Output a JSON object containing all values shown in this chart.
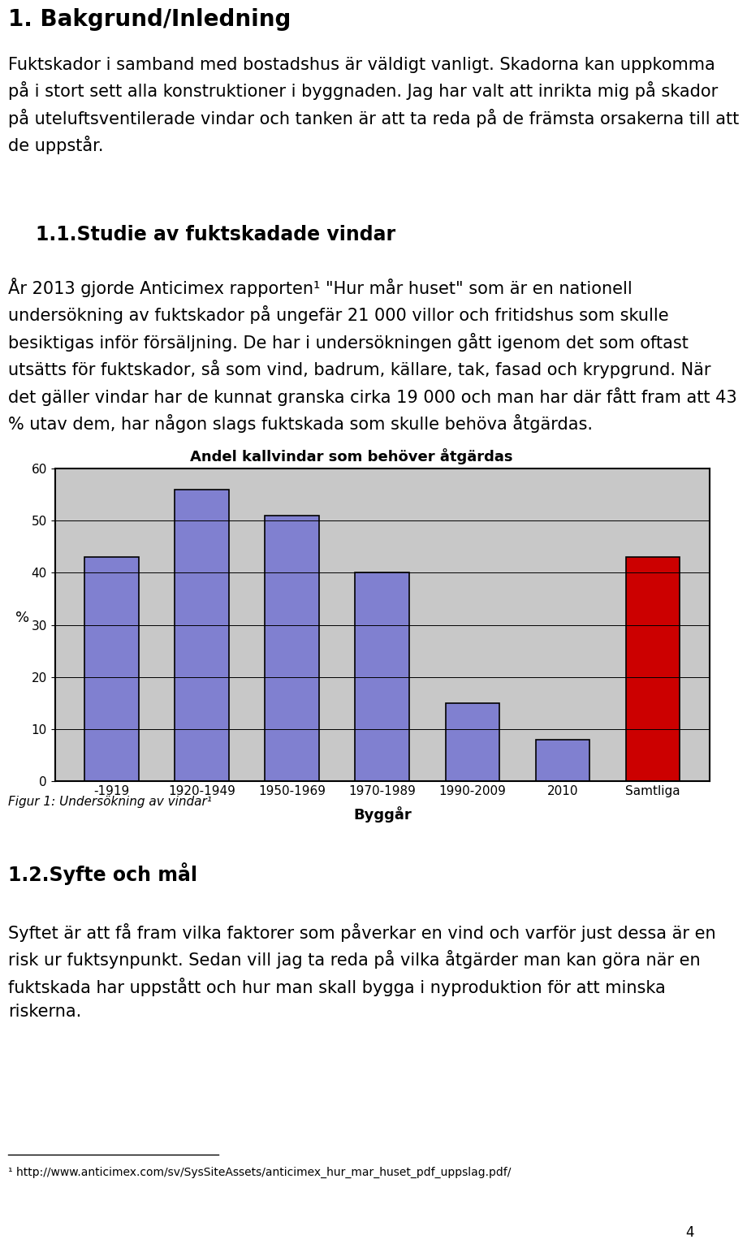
{
  "page_title": "1. Bakgrund/Inledning",
  "section_title": "1.1.Studie av fuktskadade vindar",
  "section2_title": "1.2.Syfte och mål",
  "p1_lines": [
    "Fuktskador i samband med bostadshus är väldigt vanligt. Skadorna kan uppkomma",
    "på i stort sett alla konstruktioner i byggnaden. Jag har valt att inrikta mig på skador",
    "på uteluftsventilerade vindar och tanken är att ta reda på de främsta orsakerna till att",
    "de uppstår."
  ],
  "p2_lines": [
    "År 2013 gjorde Anticimex rapporten¹ \"Hur mår huset\" som är en nationell",
    "undersökning av fuktskador på ungefär 21 000 villor och fritidshus som skulle",
    "besiktigas inför försäljning. De har i undersökningen gått igenom det som oftast",
    "utsätts för fuktskador, så som vind, badrum, källare, tak, fasad och krypgrund. När",
    "det gäller vindar har de kunnat granska cirka 19 000 och man har där fått fram att 43",
    "% utav dem, har någon slags fuktskada som skulle behöva åtgärdas."
  ],
  "p3_lines": [
    "Syftet är att få fram vilka faktorer som påverkar en vind och varför just dessa är en",
    "risk ur fuktsynpunkt. Sedan vill jag ta reda på vilka åtgärder man kan göra när en",
    "fuktskada har uppstått och hur man skall bygga i nyproduktion för att minska",
    "riskerna."
  ],
  "chart_title": "Andel kallvindar som behöver åtgärdas",
  "categories": [
    "-1919",
    "1920-1949",
    "1950-1969",
    "1970-1989",
    "1990-2009",
    "2010",
    "Samtliga"
  ],
  "values": [
    43,
    56,
    51,
    40,
    15,
    8,
    43
  ],
  "bar_colors": [
    "#8080d0",
    "#8080d0",
    "#8080d0",
    "#8080d0",
    "#8080d0",
    "#8080d0",
    "#cc0000"
  ],
  "bar_edgecolor": "#000000",
  "ylabel": "%",
  "xlabel": "Byggår",
  "ylim": [
    0,
    60
  ],
  "yticks": [
    0,
    10,
    20,
    30,
    40,
    50,
    60
  ],
  "chart_bg": "#c8c8c8",
  "fig_bg": "#ffffff",
  "figcaption": "Figur 1: Undersökning av vindar¹",
  "footnote": "¹ http://www.anticimex.com/sv/SysSiteAssets/anticimex_hur_mar_huset_pdf_uppslag.pdf/",
  "page_number": "4",
  "lm": 0.08,
  "rm": 0.96,
  "title_fs": 20,
  "section_fs": 17,
  "body_fs": 15,
  "caption_fs": 11,
  "footnote_fs": 10,
  "pagenum_fs": 12
}
